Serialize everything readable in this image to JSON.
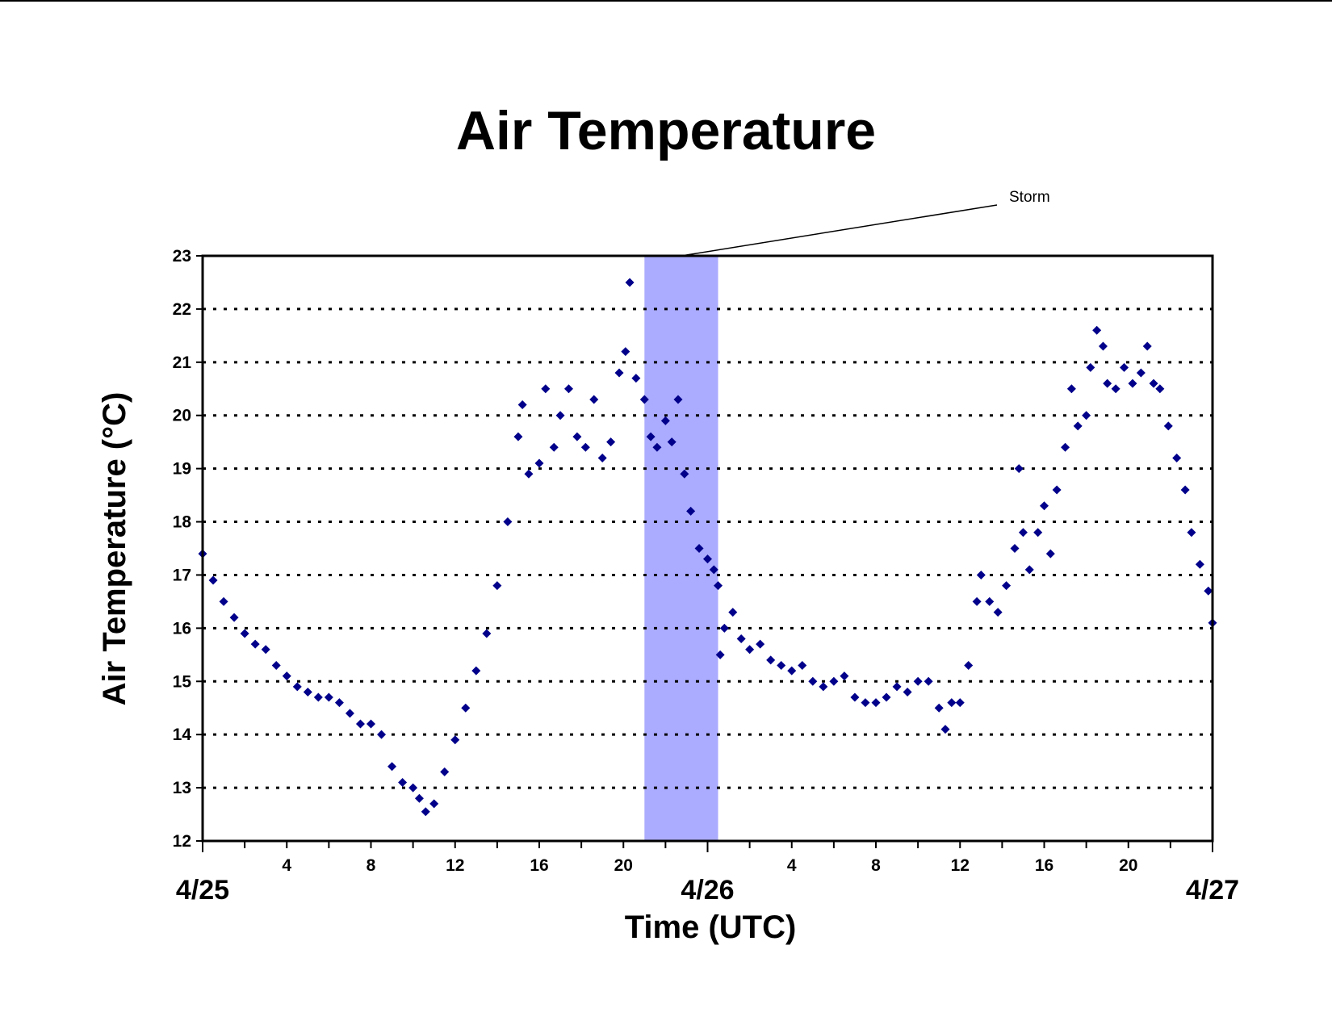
{
  "chart_data": {
    "type": "scatter",
    "title": "Air Temperature",
    "xlabel": "Time (UTC)",
    "ylabel": "Air Temperature (°C)",
    "xlim_hours": [
      0,
      48
    ],
    "ylim": [
      12,
      23
    ],
    "y_ticks": [
      "12",
      "13",
      "14",
      "15",
      "16",
      "17",
      "18",
      "19",
      "20",
      "21",
      "22",
      "23"
    ],
    "x_tick_labels": [
      {
        "hour": 4,
        "label": "4"
      },
      {
        "hour": 8,
        "label": "8"
      },
      {
        "hour": 12,
        "label": "12"
      },
      {
        "hour": 16,
        "label": "16"
      },
      {
        "hour": 20,
        "label": "20"
      },
      {
        "hour": 28,
        "label": "4"
      },
      {
        "hour": 32,
        "label": "8"
      },
      {
        "hour": 36,
        "label": "12"
      },
      {
        "hour": 40,
        "label": "16"
      },
      {
        "hour": 44,
        "label": "20"
      }
    ],
    "date_labels": [
      {
        "hour": 0,
        "label": "4/25"
      },
      {
        "hour": 24,
        "label": "4/26"
      },
      {
        "hour": 48,
        "label": "4/27"
      }
    ],
    "grid": "horizontal dotted",
    "marker": "diamond",
    "series_color": "#00008B",
    "highlight": {
      "label": "Storm",
      "x_start_hour": 21,
      "x_end_hour": 24.5,
      "color": "#ABABFF"
    },
    "series": [
      {
        "values_hour_temp": [
          [
            0,
            17.4
          ],
          [
            0.5,
            16.9
          ],
          [
            1,
            16.5
          ],
          [
            1.5,
            16.2
          ],
          [
            2,
            15.9
          ],
          [
            2.5,
            15.7
          ],
          [
            3,
            15.6
          ],
          [
            3.5,
            15.3
          ],
          [
            4,
            15.1
          ],
          [
            4.5,
            14.9
          ],
          [
            5,
            14.8
          ],
          [
            5.5,
            14.7
          ],
          [
            6,
            14.7
          ],
          [
            6.5,
            14.6
          ],
          [
            7,
            14.4
          ],
          [
            7.5,
            14.2
          ],
          [
            8,
            14.2
          ],
          [
            8.5,
            14.0
          ],
          [
            9,
            13.4
          ],
          [
            9.5,
            13.1
          ],
          [
            10,
            13.0
          ],
          [
            10.3,
            12.8
          ],
          [
            10.6,
            12.55
          ],
          [
            11,
            12.7
          ],
          [
            11.5,
            13.3
          ],
          [
            12,
            13.9
          ],
          [
            12.5,
            14.5
          ],
          [
            13,
            15.2
          ],
          [
            13.5,
            15.9
          ],
          [
            14,
            16.8
          ],
          [
            14.5,
            18.0
          ],
          [
            15,
            19.6
          ],
          [
            15.2,
            20.2
          ],
          [
            15.5,
            18.9
          ],
          [
            16,
            19.1
          ],
          [
            16.3,
            20.5
          ],
          [
            16.7,
            19.4
          ],
          [
            17,
            20.0
          ],
          [
            17.4,
            20.5
          ],
          [
            17.8,
            19.6
          ],
          [
            18.2,
            19.4
          ],
          [
            18.6,
            20.3
          ],
          [
            19,
            19.2
          ],
          [
            19.4,
            19.5
          ],
          [
            19.8,
            20.8
          ],
          [
            20.1,
            21.2
          ],
          [
            20.3,
            22.5
          ],
          [
            20.6,
            20.7
          ],
          [
            21,
            20.3
          ],
          [
            21.3,
            19.6
          ],
          [
            21.6,
            19.4
          ],
          [
            22,
            19.9
          ],
          [
            22.3,
            19.5
          ],
          [
            22.6,
            20.3
          ],
          [
            22.9,
            18.9
          ],
          [
            23.2,
            18.2
          ],
          [
            23.6,
            17.5
          ],
          [
            24,
            17.3
          ],
          [
            24.3,
            17.1
          ],
          [
            24.5,
            16.8
          ],
          [
            24.6,
            15.5
          ],
          [
            24.8,
            16.0
          ],
          [
            25.2,
            16.3
          ],
          [
            25.6,
            15.8
          ],
          [
            26,
            15.6
          ],
          [
            26.5,
            15.7
          ],
          [
            27,
            15.4
          ],
          [
            27.5,
            15.3
          ],
          [
            28,
            15.2
          ],
          [
            28.5,
            15.3
          ],
          [
            29,
            15.0
          ],
          [
            29.5,
            14.9
          ],
          [
            30,
            15.0
          ],
          [
            30.5,
            15.1
          ],
          [
            31,
            14.7
          ],
          [
            31.5,
            14.6
          ],
          [
            32,
            14.6
          ],
          [
            32.5,
            14.7
          ],
          [
            33,
            14.9
          ],
          [
            33.5,
            14.8
          ],
          [
            34,
            15.0
          ],
          [
            34.5,
            15.0
          ],
          [
            35,
            14.5
          ],
          [
            35.3,
            14.1
          ],
          [
            35.6,
            14.6
          ],
          [
            36,
            14.6
          ],
          [
            36.4,
            15.3
          ],
          [
            36.8,
            16.5
          ],
          [
            37,
            17.0
          ],
          [
            37.4,
            16.5
          ],
          [
            37.8,
            16.3
          ],
          [
            38.2,
            16.8
          ],
          [
            38.6,
            17.5
          ],
          [
            38.8,
            19.0
          ],
          [
            39,
            17.8
          ],
          [
            39.3,
            17.1
          ],
          [
            39.7,
            17.8
          ],
          [
            40,
            18.3
          ],
          [
            40.3,
            17.4
          ],
          [
            40.6,
            18.6
          ],
          [
            41,
            19.4
          ],
          [
            41.3,
            20.5
          ],
          [
            41.6,
            19.8
          ],
          [
            42,
            20.0
          ],
          [
            42.2,
            20.9
          ],
          [
            42.5,
            21.6
          ],
          [
            42.8,
            21.3
          ],
          [
            43,
            20.6
          ],
          [
            43.4,
            20.5
          ],
          [
            43.8,
            20.9
          ],
          [
            44.2,
            20.6
          ],
          [
            44.6,
            20.8
          ],
          [
            44.9,
            21.3
          ],
          [
            45.2,
            20.6
          ],
          [
            45.5,
            20.5
          ],
          [
            45.9,
            19.8
          ],
          [
            46.3,
            19.2
          ],
          [
            46.7,
            18.6
          ],
          [
            47,
            17.8
          ],
          [
            47.4,
            17.2
          ],
          [
            47.8,
            16.7
          ],
          [
            48,
            16.1
          ]
        ]
      }
    ]
  }
}
